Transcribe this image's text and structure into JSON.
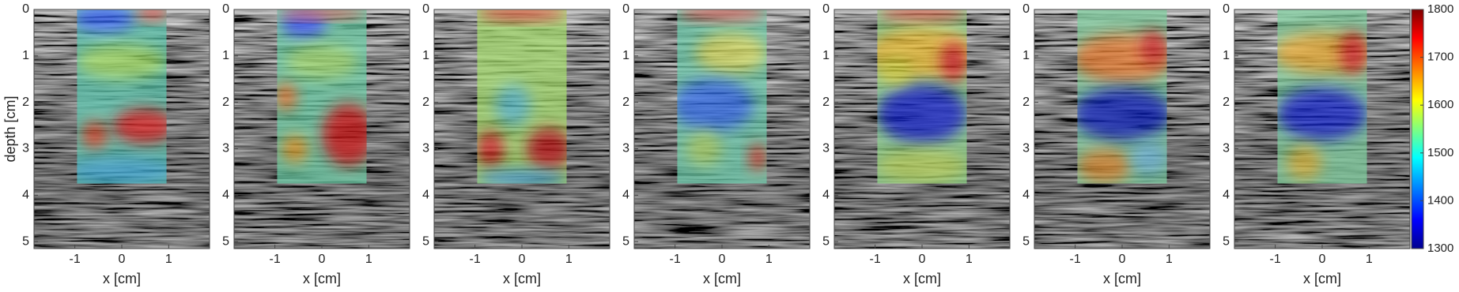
{
  "chart_data": [
    {
      "type": "image",
      "ylabel": "depth [cm]",
      "xlabel": "x [cm]",
      "xlim": [
        -1.87,
        1.87
      ],
      "ylim": [
        0,
        5.15
      ],
      "xticks": [
        -1,
        0,
        1
      ],
      "yticks": [
        0,
        1,
        2,
        3,
        4,
        5
      ]
    },
    {
      "type": "image",
      "xlabel": "x [cm]",
      "xlim": [
        -1.87,
        1.87
      ],
      "ylim": [
        0,
        5.15
      ],
      "xticks": [
        -1,
        0,
        1
      ],
      "yticks": [
        0,
        1,
        2,
        3,
        4,
        5
      ]
    },
    {
      "type": "image",
      "xlabel": "x [cm]",
      "xlim": [
        -1.87,
        1.87
      ],
      "ylim": [
        0,
        5.15
      ],
      "xticks": [
        -1,
        0,
        1
      ],
      "yticks": [
        0,
        1,
        2,
        3,
        4,
        5
      ]
    },
    {
      "type": "image",
      "xlabel": "x [cm]",
      "xlim": [
        -1.87,
        1.87
      ],
      "ylim": [
        0,
        5.15
      ],
      "xticks": [
        -1,
        0,
        1
      ],
      "yticks": [
        0,
        1,
        2,
        3,
        4,
        5
      ]
    },
    {
      "type": "image",
      "xlabel": "x [cm]",
      "xlim": [
        -1.87,
        1.87
      ],
      "ylim": [
        0,
        5.15
      ],
      "xticks": [
        -1,
        0,
        1
      ],
      "yticks": [
        0,
        1,
        2,
        3,
        4,
        5
      ]
    },
    {
      "type": "image",
      "xlabel": "x [cm]",
      "xlim": [
        -1.87,
        1.87
      ],
      "ylim": [
        0,
        5.15
      ],
      "xticks": [
        -1,
        0,
        1
      ],
      "yticks": [
        0,
        1,
        2,
        3,
        4,
        5
      ]
    },
    {
      "type": "image",
      "xlabel": "x [cm]",
      "xlim": [
        -1.87,
        1.87
      ],
      "ylim": [
        0,
        5.15
      ],
      "xticks": [
        -1,
        0,
        1
      ],
      "yticks": [
        0,
        1,
        2,
        3,
        4,
        5
      ]
    }
  ],
  "colorbar": {
    "clim": [
      1300,
      1800
    ],
    "cticks": [
      1300,
      1400,
      1500,
      1600,
      1700,
      1800
    ]
  }
}
